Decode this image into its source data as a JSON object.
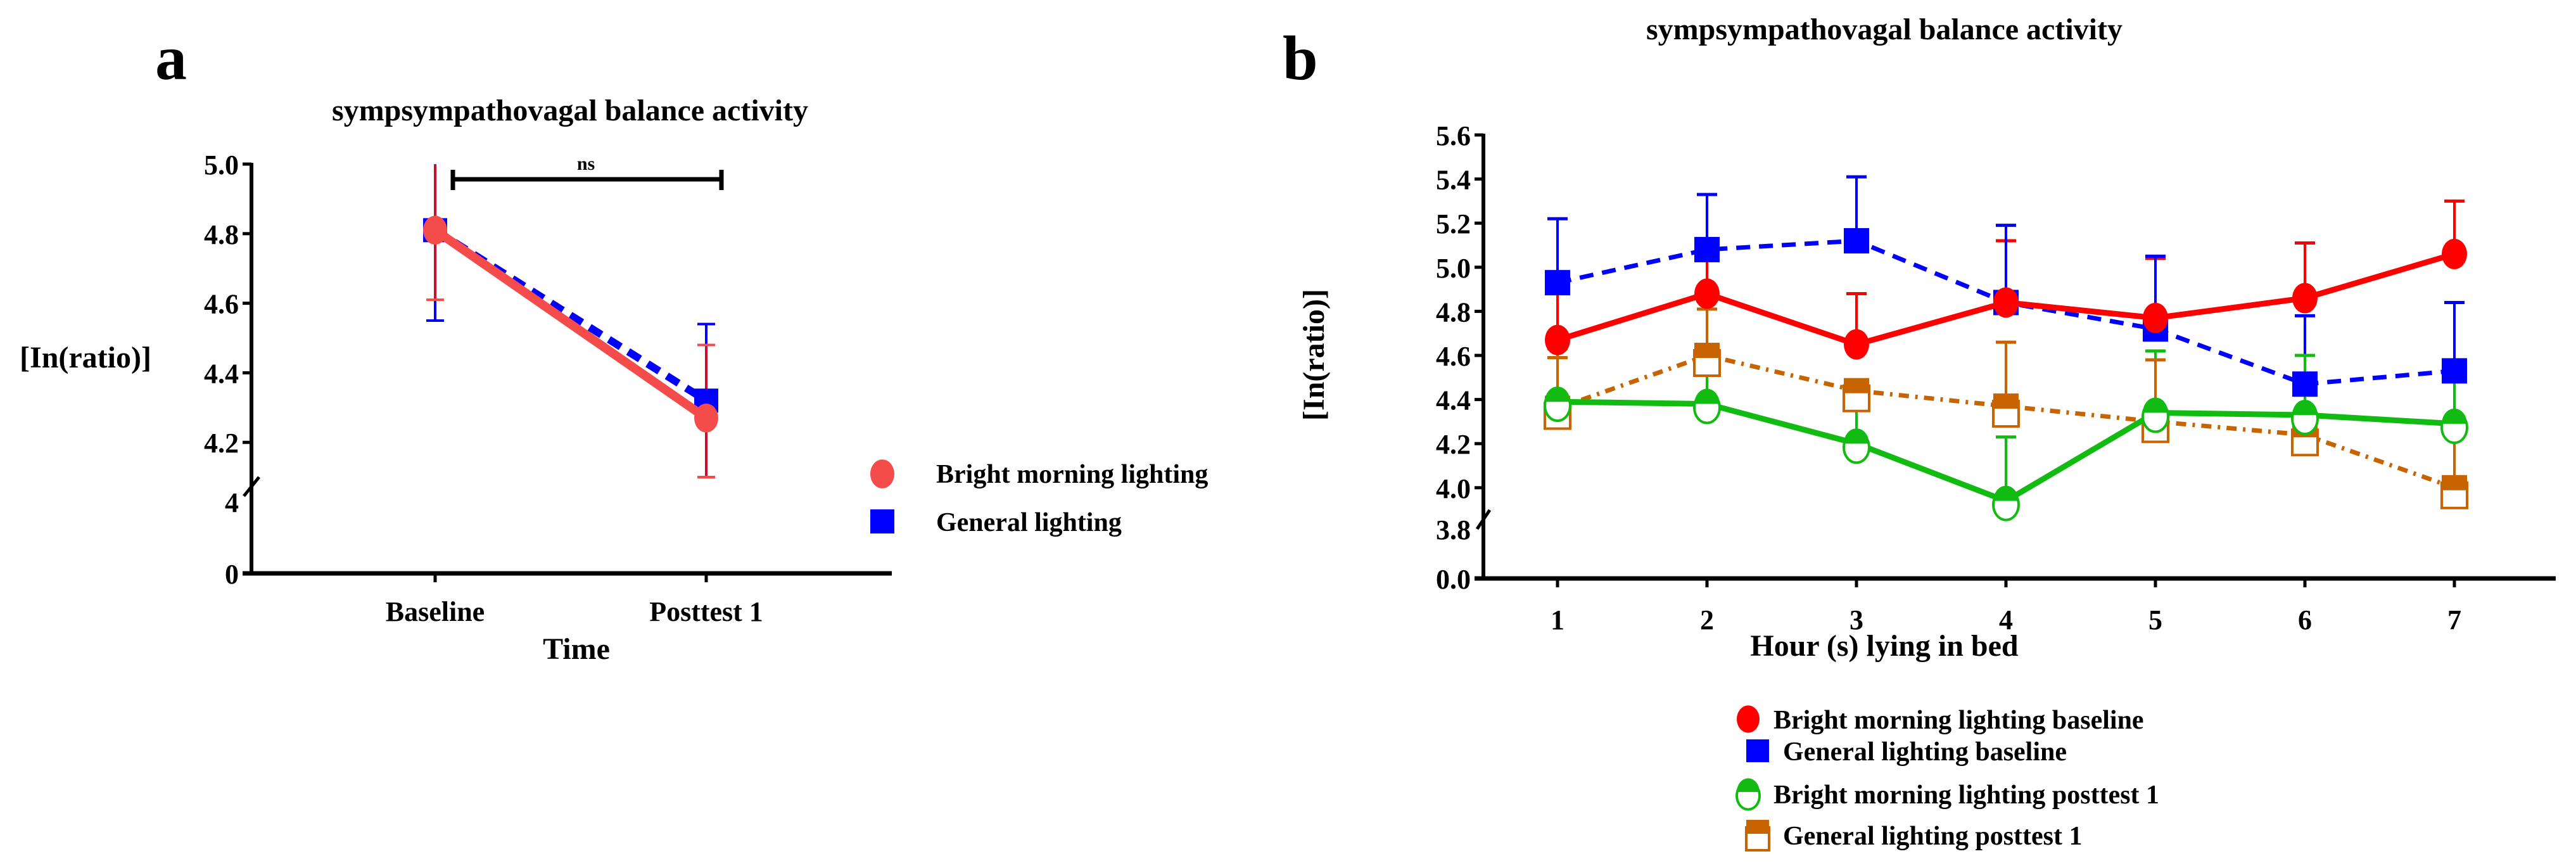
{
  "chart_data": [
    {
      "type": "line",
      "panel_label": "a",
      "title": "sympsympathovagal balance  activity",
      "xlabel": "Time",
      "ylabel": "[In(ratio)]",
      "categories": [
        "Baseline",
        "Posttest 1"
      ],
      "ylim": [
        4.1,
        5.0
      ],
      "yticks": [
        "5.0",
        "4.8",
        "4.6",
        "4.4",
        "4.2"
      ],
      "ybreak_ticks": [
        "4",
        "0"
      ],
      "annotation": "ns",
      "series": [
        {
          "name": "Bright morning lighting",
          "color": "#f44b4b",
          "marker": "circle",
          "line": "solid",
          "values": [
            4.81,
            4.27
          ],
          "err_low": [
            4.61,
            4.1
          ],
          "err_high": [
            5.0,
            4.48
          ]
        },
        {
          "name": "General lighting",
          "color": "#0000ff",
          "marker": "square",
          "line": "dashed",
          "values": [
            4.81,
            4.32
          ],
          "err_low": [
            4.55,
            4.1
          ],
          "err_high": [
            5.0,
            4.54
          ]
        }
      ],
      "legend_position": "right"
    },
    {
      "type": "line",
      "panel_label": "b",
      "title": "sympsympathovagal balance  activity",
      "xlabel": "Hour (s) lying in bed",
      "ylabel": "[In(ratio)]",
      "categories": [
        "1",
        "2",
        "3",
        "4",
        "5",
        "6",
        "7"
      ],
      "ylim": [
        3.9,
        5.6
      ],
      "yticks": [
        "5.6",
        "5.4",
        "5.2",
        "5.0",
        "4.8",
        "4.6",
        "4.4",
        "4.2",
        "4.0"
      ],
      "ybreak_ticks": [
        "3.8",
        "0.0"
      ],
      "series": [
        {
          "name": "Bright morning lighting baseline",
          "color": "#ff0000",
          "marker": "circle",
          "line": "solid",
          "values": [
            4.67,
            4.88,
            4.65,
            4.84,
            4.77,
            4.86,
            5.06
          ],
          "err_high": [
            4.91,
            5.09,
            4.88,
            5.12,
            5.04,
            5.11,
            5.3
          ]
        },
        {
          "name": "General lighting baseline",
          "color": "#0000ff",
          "marker": "square",
          "line": "dashed",
          "values": [
            4.93,
            5.08,
            5.12,
            4.84,
            4.72,
            4.47,
            4.53
          ],
          "err_high": [
            5.22,
            5.33,
            5.41,
            5.19,
            5.05,
            4.78,
            4.84
          ]
        },
        {
          "name": "Bright morning lighting posttest 1",
          "color": "#11bb11",
          "marker": "half-circle",
          "line": "solid",
          "values": [
            4.39,
            4.38,
            4.2,
            3.94,
            4.34,
            4.33,
            4.29
          ],
          "err_high": [
            4.63,
            4.6,
            4.44,
            4.23,
            4.62,
            4.6,
            4.5
          ]
        },
        {
          "name": "General lighting posttest 1",
          "color": "#c86400",
          "marker": "half-square",
          "line": "dash-dot",
          "values": [
            4.36,
            4.6,
            4.44,
            4.37,
            4.3,
            4.24,
            4.0
          ],
          "err_high": [
            4.59,
            4.81,
            4.46,
            4.66,
            4.58,
            4.3,
            4.26
          ]
        }
      ],
      "legend_position": "bottom"
    }
  ]
}
